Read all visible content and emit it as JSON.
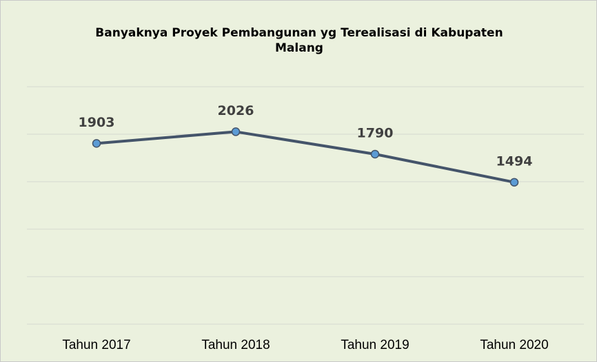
{
  "chart_data": {
    "type": "line",
    "title": "Banyaknya Proyek Pembangunan yg Terealisasi di Kabupaten Malang",
    "categories": [
      "Tahun 2017",
      "Tahun 2018",
      "Tahun 2019",
      "Tahun 2020"
    ],
    "values": [
      1903,
      2026,
      1790,
      1494
    ],
    "color": "#44546a",
    "marker_color": "#5b9bd5",
    "ylim": [
      0,
      2500
    ],
    "yticks": [
      0,
      500,
      1000,
      1500,
      2000,
      2500
    ],
    "grid": true
  }
}
